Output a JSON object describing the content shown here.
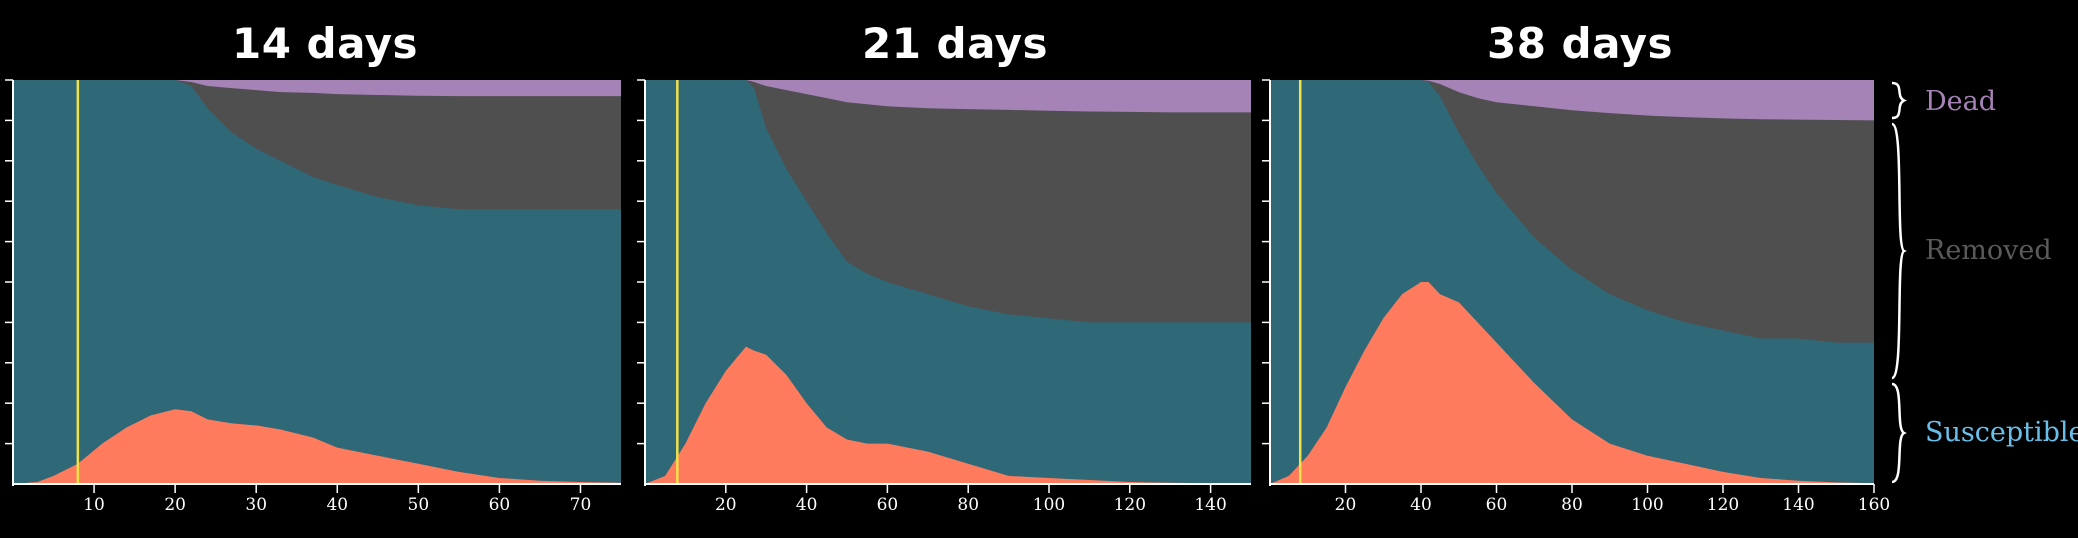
{
  "colors": {
    "susceptible": "#2f6877",
    "infected": "#fe7b5d",
    "removed": "#4f4f4f",
    "dead": "#a583b6",
    "marker": "#f2e24a",
    "axis": "#ffffff",
    "dead_label": "#a583b6",
    "removed_label": "#5a5a5a",
    "susceptible_label": "#68c0ea"
  },
  "legend": {
    "dead": "Dead",
    "removed": "Removed",
    "susceptible": "Susceptible"
  },
  "chart_data": [
    {
      "type": "area",
      "title": "14 days",
      "xlim": [
        0,
        75
      ],
      "ylim": [
        0,
        1
      ],
      "x_ticks": [
        10,
        20,
        30,
        40,
        50,
        60,
        70
      ],
      "marker_x": 8,
      "stack_order": [
        "infected",
        "susceptible",
        "removed",
        "dead"
      ],
      "x": [
        0,
        3,
        5,
        8,
        11,
        14,
        17,
        20,
        22,
        24,
        27,
        30,
        33,
        37,
        40,
        45,
        50,
        55,
        60,
        65,
        70,
        75
      ],
      "infected": [
        0,
        0.005,
        0.02,
        0.05,
        0.1,
        0.14,
        0.17,
        0.185,
        0.18,
        0.16,
        0.15,
        0.145,
        0.135,
        0.115,
        0.09,
        0.07,
        0.05,
        0.03,
        0.015,
        0.008,
        0.005,
        0.003
      ],
      "removed": [
        0,
        0,
        0,
        0,
        0,
        0,
        0,
        0,
        0.015,
        0.07,
        0.13,
        0.17,
        0.2,
        0.24,
        0.26,
        0.29,
        0.31,
        0.32,
        0.32,
        0.32,
        0.32,
        0.32
      ],
      "dead": [
        0,
        0,
        0,
        0,
        0,
        0,
        0,
        0,
        0.005,
        0.015,
        0.02,
        0.025,
        0.03,
        0.032,
        0.035,
        0.037,
        0.039,
        0.04,
        0.04,
        0.04,
        0.04,
        0.04
      ]
    },
    {
      "type": "area",
      "title": "21 days",
      "xlim": [
        0,
        150
      ],
      "ylim": [
        0,
        1
      ],
      "x_ticks": [
        20,
        40,
        60,
        80,
        100,
        120,
        140
      ],
      "marker_x": 8,
      "stack_order": [
        "infected",
        "susceptible",
        "removed",
        "dead"
      ],
      "x": [
        0,
        5,
        10,
        15,
        20,
        25,
        27,
        30,
        35,
        40,
        45,
        50,
        55,
        60,
        70,
        80,
        90,
        100,
        110,
        120,
        130,
        140,
        150
      ],
      "infected": [
        0,
        0.02,
        0.1,
        0.2,
        0.28,
        0.34,
        0.33,
        0.32,
        0.27,
        0.2,
        0.14,
        0.11,
        0.1,
        0.1,
        0.08,
        0.05,
        0.02,
        0.015,
        0.01,
        0.005,
        0.003,
        0.002,
        0.001
      ],
      "removed": [
        0,
        0,
        0,
        0,
        0,
        0,
        0.02,
        0.12,
        0.22,
        0.3,
        0.38,
        0.45,
        0.48,
        0.5,
        0.53,
        0.56,
        0.58,
        0.59,
        0.6,
        0.6,
        0.6,
        0.6,
        0.6
      ],
      "dead": [
        0,
        0,
        0,
        0,
        0,
        0,
        0.005,
        0.015,
        0.025,
        0.035,
        0.045,
        0.055,
        0.06,
        0.065,
        0.07,
        0.072,
        0.074,
        0.076,
        0.078,
        0.079,
        0.08,
        0.08,
        0.08
      ]
    },
    {
      "type": "area",
      "title": "38 days",
      "xlim": [
        0,
        160
      ],
      "ylim": [
        0,
        1
      ],
      "x_ticks": [
        20,
        40,
        60,
        80,
        100,
        120,
        140,
        160
      ],
      "marker_x": 8,
      "stack_order": [
        "infected",
        "susceptible",
        "removed",
        "dead"
      ],
      "x": [
        0,
        5,
        10,
        15,
        20,
        25,
        30,
        35,
        40,
        42,
        45,
        50,
        55,
        60,
        70,
        80,
        90,
        100,
        110,
        120,
        130,
        140,
        150,
        160
      ],
      "infected": [
        0,
        0.02,
        0.07,
        0.14,
        0.24,
        0.33,
        0.41,
        0.47,
        0.5,
        0.5,
        0.47,
        0.45,
        0.4,
        0.35,
        0.25,
        0.16,
        0.1,
        0.07,
        0.05,
        0.03,
        0.015,
        0.008,
        0.004,
        0.002
      ],
      "removed": [
        0,
        0,
        0,
        0,
        0,
        0,
        0,
        0,
        0,
        0.005,
        0.04,
        0.13,
        0.21,
        0.28,
        0.39,
        0.47,
        0.53,
        0.57,
        0.6,
        0.62,
        0.64,
        0.64,
        0.65,
        0.65
      ],
      "dead": [
        0,
        0,
        0,
        0,
        0,
        0,
        0,
        0,
        0,
        0.002,
        0.01,
        0.03,
        0.045,
        0.055,
        0.065,
        0.075,
        0.082,
        0.088,
        0.092,
        0.095,
        0.097,
        0.098,
        0.099,
        0.1
      ]
    }
  ]
}
